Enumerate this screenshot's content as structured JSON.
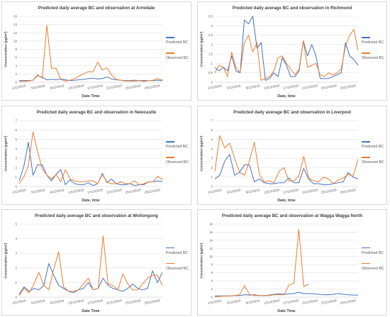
{
  "colors": {
    "predicted": "#4472c4",
    "observed": "#ed7d31",
    "grid": "#d9d9d9",
    "axis": "#bfbfbf"
  },
  "legend": {
    "predicted": "Predicted BC",
    "observed": "Observed BC"
  },
  "chart_data": [
    {
      "type": "line",
      "title": "Predicted daily average BC and observation at Armidale",
      "xlabel": "Date Time",
      "ylabel": "Concentration (µg/m³)",
      "ylim": [
        0,
        16
      ],
      "yticks": [
        0,
        2,
        4,
        6,
        8,
        10,
        12,
        14,
        16
      ],
      "xticks": [
        "1/12/2019",
        "5/12/2019",
        "9/12/2019",
        "13/12/2019",
        "17/12/2019",
        "21/12/2019",
        "25/12/2019",
        "29/12/2019"
      ],
      "series": [
        {
          "name": "Predicted BC",
          "values": [
            0.4,
            0.4,
            0.4,
            0.5,
            1.6,
            1.2,
            0.6,
            0.7,
            0.6,
            0.8,
            0.6,
            0.4,
            0.5,
            0.6,
            0.7,
            0.9,
            1.0,
            0.8,
            0.9,
            1.3,
            0.8,
            0.6,
            0.5,
            0.4,
            0.4,
            0.5,
            0.4,
            0.4,
            0.4,
            0.4,
            0.5,
            0.4
          ]
        },
        {
          "name": "Observed BC",
          "values": [
            0.2,
            0.2,
            0.3,
            0.5,
            1.8,
            1.0,
            13.8,
            3.4,
            3.4,
            0.7,
            0.3,
            0.5,
            0.9,
            1.5,
            2.1,
            2.6,
            2.5,
            4.9,
            3.0,
            3.5,
            1.8,
            0.7,
            0.5,
            0.3,
            0.3,
            0.3,
            0.4,
            0.2,
            0.4,
            0.5,
            0.9,
            0.5
          ]
        }
      ]
    },
    {
      "type": "line",
      "title": "Predicted daily average BC and observation in Richmond",
      "xlabel": "Date, time",
      "ylabel": "Concentration (µg/m³)",
      "ylim": [
        0,
        3.5
      ],
      "yticks": [
        0,
        0.5,
        1,
        1.5,
        2,
        2.5,
        3,
        3.5
      ],
      "xticks": [
        "1/12/2019",
        "5/12/2019",
        "9/12/2019",
        "13/12/2019",
        "17/12/2019",
        "21/12/2019",
        "25/12/2019",
        "29/12/2019"
      ],
      "series": [
        {
          "name": "Predicted BC",
          "values": [
            0.8,
            0.6,
            0.8,
            0.6,
            1.4,
            0.6,
            0.5,
            3.3,
            3.1,
            3.6,
            1.8,
            2.1,
            0.1,
            0.2,
            0.5,
            0.3,
            1.3,
            0.9,
            0.3,
            0.3,
            0.6,
            2.2,
            1.4,
            2.0,
            1.4,
            0.2,
            0.2,
            0.2,
            0.3,
            0.4,
            0.5,
            2.1,
            1.4,
            1.2,
            0.9
          ]
        },
        {
          "name": "Observed BC",
          "values": [
            0.5,
            0.9,
            0.8,
            0.3,
            1.6,
            0.8,
            0.5,
            2.1,
            2.5,
            1.6,
            2.1,
            0.1,
            0.2,
            0.3,
            0.6,
            1.3,
            1.4,
            1.0,
            0.7,
            0.4,
            0.7,
            2.2,
            0.8,
            0.9,
            1.0,
            0.4,
            0.3,
            0.5,
            0.4,
            0.5,
            0.7,
            1.9,
            2.5,
            2.8,
            1.7
          ]
        }
      ]
    },
    {
      "type": "line",
      "title": "Predicted daily average BC and observation in Newcastle",
      "xlabel": "Date, time",
      "ylabel": "Concentration (µg/m³)",
      "ylim": [
        0,
        7
      ],
      "yticks": [
        0,
        1,
        2,
        3,
        4,
        5,
        6,
        7
      ],
      "xticks": [
        "1/12/2019",
        "5/12/2019",
        "9/12/2019",
        "13/12/2019",
        "17/12/2019",
        "21/12/2019",
        "25/12/2019",
        "29/12/2019"
      ],
      "series": [
        {
          "name": "Predicted BC",
          "values": [
            0.6,
            2.1,
            4.7,
            1.2,
            2.3,
            2.3,
            1.2,
            0.6,
            1.3,
            1.8,
            0.2,
            0.7,
            0.3,
            0.2,
            0.2,
            0.4,
            0.1,
            0.3,
            1.4,
            0.4,
            0.8,
            0.3,
            0.2,
            0.2,
            0.3,
            0.1,
            0.2,
            0.2,
            0.5,
            0.5,
            0.6,
            0.5
          ]
        },
        {
          "name": "Observed BC",
          "values": [
            0.3,
            1.0,
            2.2,
            5.8,
            3.7,
            1.9,
            1.2,
            0.8,
            1.3,
            0.5,
            1.8,
            0.8,
            0.6,
            0.5,
            0.5,
            0.6,
            0.6,
            0.3,
            1.3,
            0.5,
            0.3,
            0.3,
            0.5,
            0.3,
            0.3,
            0.6,
            0.2,
            0.3,
            0.5,
            0.5,
            1.1,
            0.7
          ]
        }
      ]
    },
    {
      "type": "line",
      "title": "Predicted daily average BC and observation in Liverpool",
      "xlabel": "Date, time",
      "ylabel": "Concentration (µg/m³)",
      "ylim": [
        0,
        7
      ],
      "yticks": [
        0,
        1,
        2,
        3,
        4,
        5,
        6,
        7
      ],
      "xticks": [
        "1/12/2019",
        "5/12/2019",
        "9/12/2019",
        "13/12/2019",
        "17/12/2019",
        "21/12/2019",
        "25/12/2019",
        "29/12/2019"
      ],
      "series": [
        {
          "name": "Predicted BC",
          "values": [
            0.8,
            1.2,
            2.7,
            3.4,
            1.2,
            1.5,
            2.3,
            2.3,
            0.5,
            0.8,
            0.4,
            0.3,
            0.3,
            0.4,
            0.4,
            0.9,
            0.4,
            0.4,
            1.9,
            0.8,
            0.3,
            0.3,
            0.2,
            0.2,
            0.3,
            0.4,
            0.5,
            1.5,
            1.0,
            0.8
          ]
        },
        {
          "name": "Observed BC",
          "values": [
            1.6,
            5.4,
            4.1,
            4.6,
            3.0,
            1.5,
            1.2,
            2.7,
            4.7,
            1.3,
            0.5,
            0.6,
            0.4,
            1.6,
            2.0,
            0.6,
            0.6,
            1.1,
            3.2,
            0.9,
            0.6,
            0.5,
            1.0,
            0.8,
            0.3,
            0.7,
            0.9,
            1.3,
            1.1,
            2.9
          ]
        }
      ]
    },
    {
      "type": "line",
      "title": "Predicted daily average BC and observation at Wollongong",
      "xlabel": "Date Time",
      "ylabel": "Concentration (µg/m³)",
      "ylim": [
        0,
        5
      ],
      "yticks": [
        0,
        1,
        2,
        3,
        4,
        5
      ],
      "xticks": [
        "1/12/2019",
        "5/12/2019",
        "9/12/2019",
        "13/12/2019",
        "17/12/2019",
        "21/12/2019",
        "25/12/2019",
        "29/12/2019"
      ],
      "series": [
        {
          "name": "Predicted BC",
          "values": [
            0.2,
            0.7,
            0.4,
            0.6,
            0.5,
            0.8,
            2.3,
            1.5,
            0.8,
            0.6,
            0.4,
            0.3,
            0.5,
            0.6,
            1.0,
            0.5,
            0.6,
            1.3,
            0.8,
            0.6,
            0.5,
            0.4,
            0.6,
            0.9,
            0.6,
            0.5,
            0.6,
            1.8,
            1.0,
            1.7
          ]
        },
        {
          "name": "Observed BC",
          "values": [
            0.1,
            0.6,
            0.3,
            0.9,
            1.7,
            0.8,
            0.5,
            1.9,
            3.1,
            0.7,
            0.4,
            0.4,
            0.5,
            0.9,
            1.3,
            0.5,
            0.6,
            4.2,
            0.9,
            0.8,
            0.5,
            1.6,
            0.9,
            0.5,
            0.5,
            0.9,
            1.3,
            1.5,
            1.5,
            0.8
          ]
        }
      ]
    },
    {
      "type": "line",
      "title": "Predicted daily average BC and observation at Wagga Wagga North",
      "xlabel": "Date Time",
      "ylabel": "Concentration (µg/m³)",
      "ylim": [
        0,
        18
      ],
      "yticks": [
        0,
        2,
        4,
        6,
        8,
        10,
        12,
        14,
        16,
        18
      ],
      "xticks": [
        "1/12/2019",
        "5/12/2019",
        "9/12/2019",
        "13/12/2019",
        "17/12/2019",
        "21/12/2019",
        "25/12/2019",
        "29/12/2019"
      ],
      "series": [
        {
          "name": "Predicted BC",
          "values": [
            0.3,
            0.3,
            0.3,
            0.3,
            0.4,
            0.4,
            0.6,
            0.5,
            0.6,
            0.4,
            0.4,
            0.5,
            0.7,
            0.8,
            0.7,
            0.8,
            0.9,
            1.2,
            0.9,
            0.9,
            0.8,
            0.7,
            0.6,
            0.6,
            0.7,
            0.9,
            0.7,
            0.6,
            0.5,
            0.5
          ]
        },
        {
          "name": "Observed BC",
          "values": [
            0.1,
            0.2,
            0.3,
            0.3,
            0.4,
            0.6,
            2.8,
            0.7,
            0.4,
            0.4,
            0.4,
            0.4,
            0.6,
            0.6,
            0.6,
            3.0,
            3.4,
            16.7,
            2.6,
            3.2,
            null,
            null,
            null,
            null,
            null,
            null,
            null,
            null,
            null,
            null
          ]
        }
      ]
    }
  ]
}
